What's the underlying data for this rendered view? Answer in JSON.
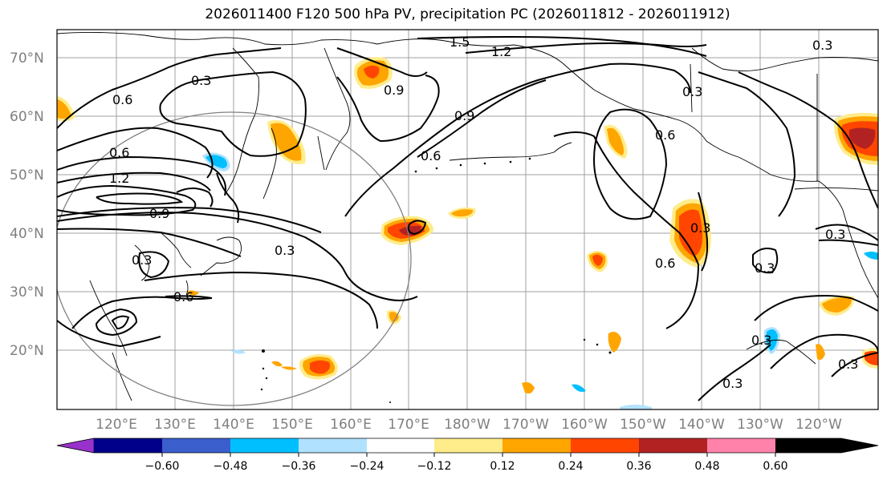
{
  "title": "2026011400 F120 500 hPa PV, precipitation PC (2026011812 - 2026011912)",
  "lat_labels": [
    "70°N",
    "60°N",
    "50°N",
    "40°N",
    "30°N",
    "20°N"
  ],
  "lon_labels": [
    "120°E",
    "130°E",
    "140°E",
    "150°E",
    "160°E",
    "170°E",
    "180°W",
    "170°W",
    "160°W",
    "150°W",
    "140°W",
    "130°W",
    "120°W"
  ],
  "contour_labels": [
    "1.5",
    "1.2",
    "0.3",
    "0.6",
    "0.9",
    "0.6",
    "1.2",
    "0.9",
    "0.3",
    "0.6",
    "0.3",
    "0.9",
    "0.6",
    "0.3",
    "0.6",
    "0.3",
    "0.3",
    "0.3",
    "0.3",
    "0.3",
    "0.3",
    "0.6",
    "0.3"
  ],
  "colorbar": {
    "labels": [
      "−0.60",
      "−0.48",
      "−0.36",
      "−0.24",
      "−0.12",
      "0.12",
      "0.24",
      "0.36",
      "0.48",
      "0.60"
    ],
    "colors": [
      "#9932cc",
      "#00008b",
      "#3a5fcd",
      "#00bfff",
      "#b0e2ff",
      "#ffffff",
      "#ffec8b",
      "#ffa500",
      "#ff4500",
      "#b22222",
      "#ff82ab"
    ]
  }
}
